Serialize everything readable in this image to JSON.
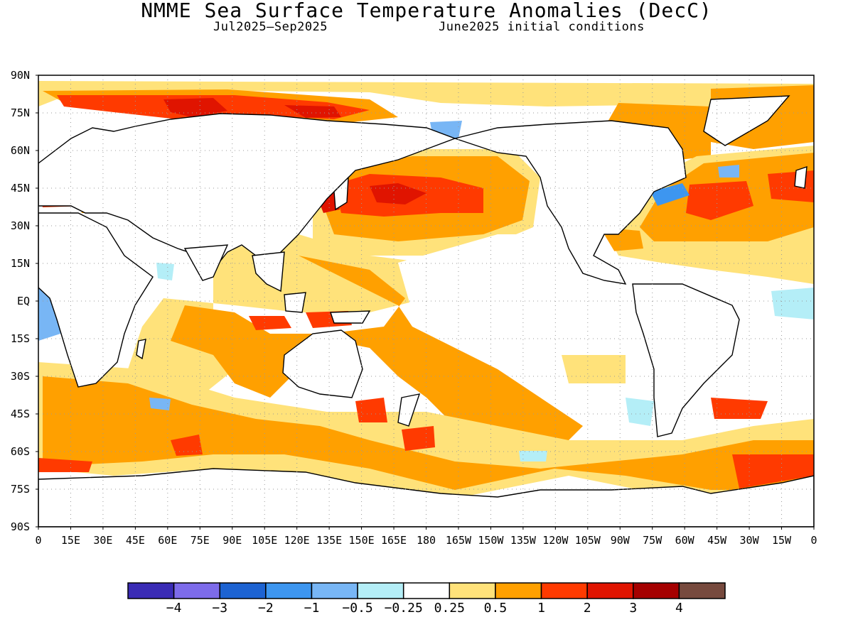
{
  "header": {
    "title": "NMME Sea Surface Temperature Anomalies (DecC)",
    "period": "Jul2025—Sep2025",
    "init": "June2025 initial conditions"
  },
  "map": {
    "lat_labels": [
      "90N",
      "75N",
      "60N",
      "45N",
      "30N",
      "15N",
      "EQ",
      "15S",
      "30S",
      "45S",
      "60S",
      "75S",
      "90S"
    ],
    "lon_labels": [
      "0",
      "15E",
      "30E",
      "45E",
      "60E",
      "75E",
      "90E",
      "105E",
      "120E",
      "135E",
      "150E",
      "165E",
      "180",
      "165W",
      "150W",
      "135W",
      "120W",
      "105W",
      "90W",
      "75W",
      "60W",
      "45W",
      "30W",
      "15W",
      "0"
    ]
  },
  "colorbar": {
    "colors": [
      "#3a2bb5",
      "#7d6bea",
      "#1d63d2",
      "#3d96f0",
      "#78b6f5",
      "#b4eef7",
      "#ffffff",
      "#ffe27a",
      "#ffa000",
      "#ff3a00",
      "#e01400",
      "#a50000",
      "#774a3e"
    ],
    "labels": [
      "−4",
      "−3",
      "−2",
      "−1",
      "−0.5",
      "−0.25",
      "0.25",
      "0.5",
      "1",
      "2",
      "3",
      "4"
    ]
  }
}
